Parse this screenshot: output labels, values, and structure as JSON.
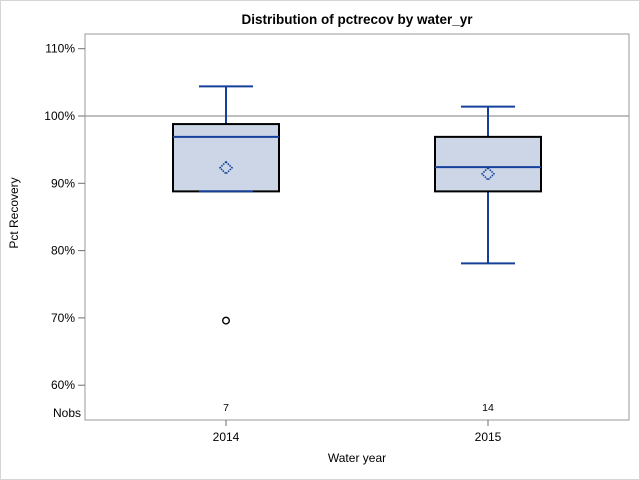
{
  "title": "Distribution of pctrecov by water_yr",
  "y_axis": {
    "label": "Pct Recovery",
    "ticks": [
      {
        "value": 110,
        "label": "110%"
      },
      {
        "value": 100,
        "label": "100%"
      },
      {
        "value": 90,
        "label": "90%"
      },
      {
        "value": 80,
        "label": "80%"
      },
      {
        "value": 70,
        "label": "70%"
      },
      {
        "value": 60,
        "label": "60%"
      }
    ],
    "nobs_label": "Nobs"
  },
  "x_axis": {
    "label": "Water year"
  },
  "chart_data": {
    "type": "box",
    "title": "Distribution of pctrecov by water_yr",
    "xlabel": "Water year",
    "ylabel": "Pct Recovery",
    "ylim": [
      55,
      112
    ],
    "reference_line_y": 100,
    "grid": "off",
    "legend": "none",
    "categories": [
      "2014",
      "2015"
    ],
    "groups": [
      {
        "category": "2014",
        "nobs": "7",
        "whisker_low": 88.8,
        "q1": 88.8,
        "median": 96.9,
        "q3": 98.8,
        "whisker_high": 104.4,
        "mean": 92.3,
        "outliers": [
          69.6
        ]
      },
      {
        "category": "2015",
        "nobs": "14",
        "whisker_low": 78.1,
        "q1": 88.8,
        "median": 92.4,
        "q3": 96.9,
        "whisker_high": 101.4,
        "mean": 91.4,
        "outliers": []
      }
    ]
  },
  "colors": {
    "box_fill": "#ccd6e7",
    "box_border": "#000000",
    "whisker_line": "#14409a",
    "median_line": "#14409a",
    "mean_marker": "#14409a",
    "outlier_marker": "#000000",
    "reference_line": "#a9a9a9",
    "frame": "#999999",
    "tick": "#6e6e6e",
    "text": "#000000",
    "page_border": "#d4d4d4",
    "background": "#ffffff"
  }
}
